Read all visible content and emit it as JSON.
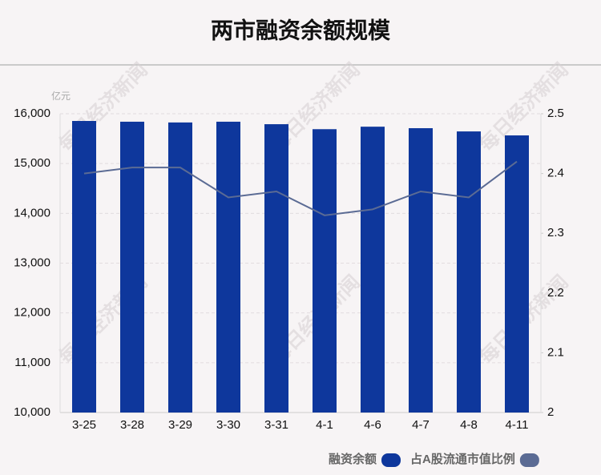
{
  "chart_data": {
    "type": "bar_line",
    "title": "两市融资余额规模",
    "unit": "亿元",
    "watermark": "每日经济新闻",
    "categories": [
      "3-25",
      "3-28",
      "3-29",
      "3-30",
      "3-31",
      "4-1",
      "4-6",
      "4-7",
      "4-8",
      "4-11"
    ],
    "series": [
      {
        "name": "融资余额",
        "type": "bar",
        "color": "#0e379c",
        "values": [
          15855,
          15840,
          15825,
          15840,
          15790,
          15690,
          15740,
          15710,
          15645,
          15565
        ]
      },
      {
        "name": "占A股流通市值比例",
        "type": "line",
        "axis": "y2",
        "color": "#5b6b94",
        "values": [
          2.4,
          2.41,
          2.41,
          2.36,
          2.37,
          2.33,
          2.34,
          2.37,
          2.36,
          2.42
        ]
      }
    ],
    "ylim": [
      10000,
      16000
    ],
    "yticks": [
      {
        "value": 10000,
        "label": "10,000"
      },
      {
        "value": 11000,
        "label": "11,000"
      },
      {
        "value": 12000,
        "label": "12,000"
      },
      {
        "value": 13000,
        "label": "13,000"
      },
      {
        "value": 14000,
        "label": "14,000"
      },
      {
        "value": 15000,
        "label": "15,000"
      },
      {
        "value": 16000,
        "label": "16,000"
      }
    ],
    "y2lim": [
      2,
      2.5
    ],
    "y2ticks": [
      2,
      2.1,
      2.2,
      2.3,
      2.4,
      2.5
    ],
    "grid": true
  }
}
